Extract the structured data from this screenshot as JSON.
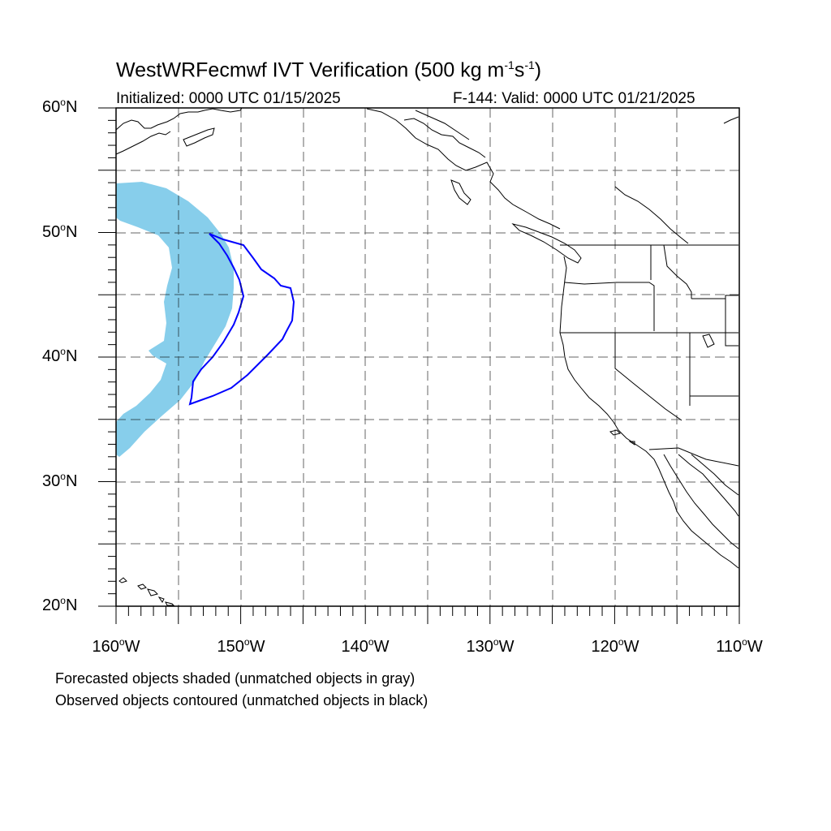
{
  "title": {
    "main": "WestWRFecmwf IVT Verification (500 kg m",
    "main_exp1": "-1",
    "main_mid": "s",
    "main_exp2": "-1",
    "main_end": ")",
    "initialized": "Initialized: 0000 UTC 01/15/2025",
    "valid": "F-144: Valid: 0000 UTC 01/21/2025"
  },
  "axes": {
    "lat_labels": [
      {
        "value": "60",
        "deg": "o",
        "hemi": "N"
      },
      {
        "value": "50",
        "deg": "o",
        "hemi": "N"
      },
      {
        "value": "40",
        "deg": "o",
        "hemi": "N"
      },
      {
        "value": "30",
        "deg": "o",
        "hemi": "N"
      },
      {
        "value": "20",
        "deg": "o",
        "hemi": "N"
      }
    ],
    "lon_labels": [
      {
        "value": "160",
        "deg": "o",
        "hemi": "W"
      },
      {
        "value": "150",
        "deg": "o",
        "hemi": "W"
      },
      {
        "value": "140",
        "deg": "o",
        "hemi": "W"
      },
      {
        "value": "130",
        "deg": "o",
        "hemi": "W"
      },
      {
        "value": "120",
        "deg": "o",
        "hemi": "W"
      },
      {
        "value": "110",
        "deg": "o",
        "hemi": "W"
      }
    ],
    "lat_range": [
      20,
      60
    ],
    "lon_range": [
      -160,
      -110
    ]
  },
  "legend": {
    "line1": "Forecasted objects shaded (unmatched objects in gray)",
    "line2": "Observed objects contoured (unmatched objects in black)"
  },
  "colors": {
    "forecast_fill": "#87ceeb",
    "observed_contour": "#0000ff",
    "coastline": "#000000",
    "grid": "#000000"
  }
}
